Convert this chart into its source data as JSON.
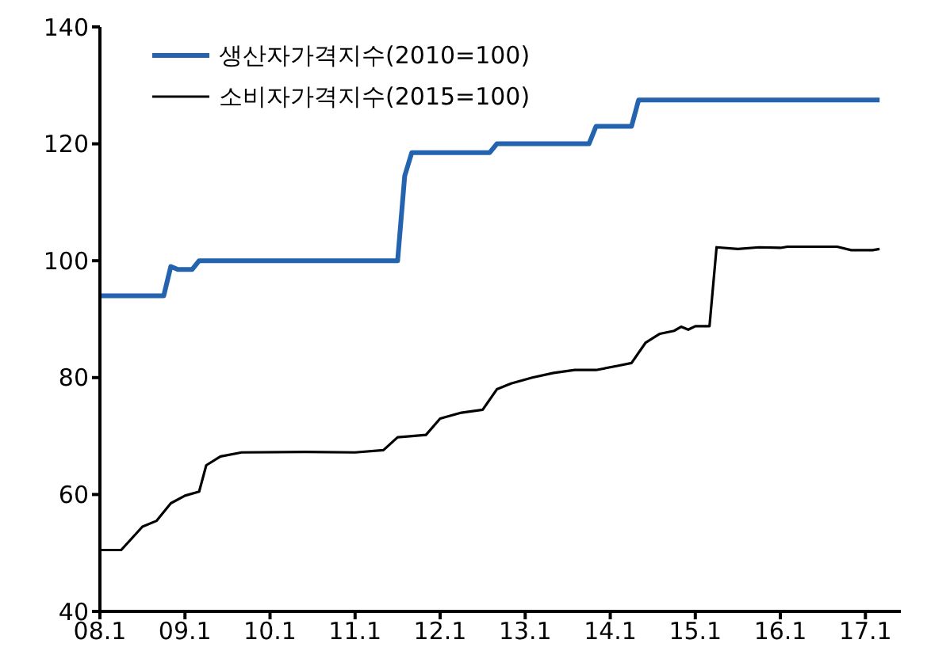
{
  "chart_data": {
    "type": "line",
    "legend": "top left",
    "grid": false,
    "marker": "none",
    "xlim": [
      "2008-01",
      "2017-06"
    ],
    "ylim": [
      40,
      140
    ],
    "yticks": [
      40,
      60,
      80,
      100,
      120,
      140
    ],
    "xticks": [
      {
        "value": "2008-01",
        "label": "08.1"
      },
      {
        "value": "2009-01",
        "label": "09.1"
      },
      {
        "value": "2010-01",
        "label": "10.1"
      },
      {
        "value": "2011-01",
        "label": "11.1"
      },
      {
        "value": "2012-01",
        "label": "12.1"
      },
      {
        "value": "2013-01",
        "label": "13.1"
      },
      {
        "value": "2014-01",
        "label": "14.1"
      },
      {
        "value": "2015-01",
        "label": "15.1"
      },
      {
        "value": "2016-01",
        "label": "16.1"
      },
      {
        "value": "2017-01",
        "label": "17.1"
      }
    ],
    "series": [
      {
        "name": "생산자가격지수(2010=100)",
        "color": "#2463ae",
        "x": [
          "2008-01",
          "2008-10",
          "2008-11",
          "2008-12",
          "2009-02",
          "2009-03",
          "2011-07",
          "2011-08",
          "2011-09",
          "2012-08",
          "2012-09",
          "2013-10",
          "2013-11",
          "2014-04",
          "2014-05",
          "2017-03"
        ],
        "values": [
          94,
          94,
          99,
          98.5,
          98.5,
          100,
          100,
          114.5,
          118.5,
          118.5,
          120,
          120,
          123,
          123,
          127.5,
          127.5
        ]
      },
      {
        "name": "소비자가격지수(2015=100)",
        "color": "#000000",
        "x": [
          "2008-01",
          "2008-04",
          "2008-07",
          "2008-09",
          "2008-11",
          "2009-01",
          "2009-03",
          "2009-04",
          "2009-06",
          "2009-09",
          "2010-06",
          "2011-01",
          "2011-05",
          "2011-07",
          "2011-11",
          "2012-01",
          "2012-04",
          "2012-07",
          "2012-09",
          "2012-11",
          "2013-02",
          "2013-05",
          "2013-08",
          "2013-11",
          "2014-02",
          "2014-04",
          "2014-06",
          "2014-08",
          "2014-10",
          "2014-11",
          "2014-12",
          "2015-01",
          "2015-03",
          "2015-04",
          "2015-07",
          "2015-10",
          "2016-01",
          "2016-02",
          "2016-09",
          "2016-11",
          "2017-02",
          "2017-03"
        ],
        "values": [
          50.5,
          50.5,
          54.5,
          55.5,
          58.5,
          59.8,
          60.5,
          65,
          66.5,
          67.2,
          67.3,
          67.2,
          67.6,
          69.8,
          70.2,
          73,
          74,
          74.5,
          78,
          79,
          80,
          80.8,
          81.3,
          81.3,
          82,
          82.5,
          86,
          87.5,
          88,
          88.7,
          88.2,
          88.8,
          88.8,
          102.3,
          102,
          102.3,
          102.2,
          102.4,
          102.4,
          101.8,
          101.8,
          102
        ]
      }
    ]
  }
}
